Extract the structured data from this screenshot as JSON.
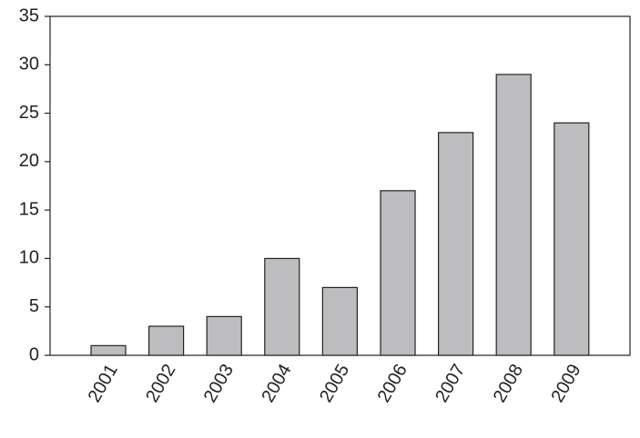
{
  "chart_data": {
    "type": "bar",
    "categories": [
      "2001",
      "2002",
      "2003",
      "2004",
      "2005",
      "2006",
      "2007",
      "2008",
      "2009"
    ],
    "values": [
      1,
      3,
      4,
      10,
      7,
      17,
      23,
      29,
      24
    ],
    "color": "#bdbdbf",
    "ylim": [
      0,
      35
    ],
    "yticks": [
      0,
      5,
      10,
      15,
      20,
      25,
      30,
      35
    ],
    "grid": false
  }
}
